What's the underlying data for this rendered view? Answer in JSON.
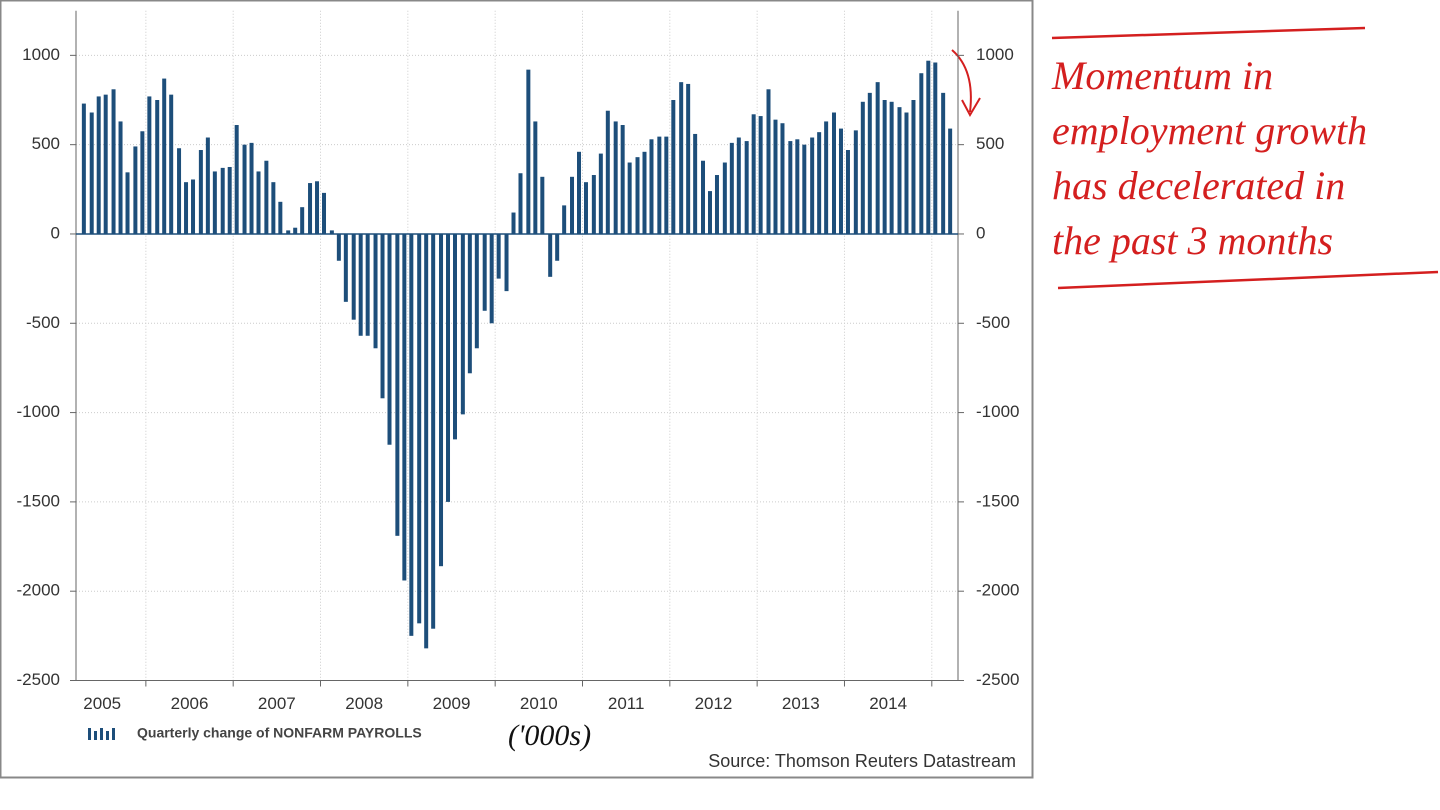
{
  "chart_data": {
    "type": "bar",
    "series": [
      {
        "name": "Quarterly change of NONFARM PAYROLLS",
        "color": "#1d4e7a",
        "x": [
          2005.29,
          2005.38,
          2005.46,
          2005.54,
          2005.63,
          2005.71,
          2005.79,
          2005.88,
          2005.96,
          2006.04,
          2006.13,
          2006.21,
          2006.29,
          2006.38,
          2006.46,
          2006.54,
          2006.63,
          2006.71,
          2006.79,
          2006.88,
          2006.96,
          2007.04,
          2007.13,
          2007.21,
          2007.29,
          2007.38,
          2007.46,
          2007.54,
          2007.63,
          2007.71,
          2007.79,
          2007.88,
          2007.96,
          2008.04,
          2008.13,
          2008.21,
          2008.29,
          2008.38,
          2008.46,
          2008.54,
          2008.63,
          2008.71,
          2008.79,
          2008.88,
          2008.96,
          2009.04,
          2009.13,
          2009.21,
          2009.29,
          2009.38,
          2009.46,
          2009.54,
          2009.63,
          2009.71,
          2009.79,
          2009.88,
          2009.96,
          2010.04,
          2010.13,
          2010.21,
          2010.29,
          2010.38,
          2010.46,
          2010.54,
          2010.63,
          2010.71,
          2010.79,
          2010.88,
          2010.96,
          2011.04,
          2011.13,
          2011.21,
          2011.29,
          2011.38,
          2011.46,
          2011.54,
          2011.63,
          2011.71,
          2011.79,
          2011.88,
          2011.96,
          2012.04,
          2012.13,
          2012.21,
          2012.29,
          2012.38,
          2012.46,
          2012.54,
          2012.63,
          2012.71,
          2012.79,
          2012.88,
          2012.96,
          2013.04,
          2013.13,
          2013.21,
          2013.29,
          2013.38,
          2013.46,
          2013.54,
          2013.63,
          2013.71,
          2013.79,
          2013.88,
          2013.96,
          2014.04,
          2014.13,
          2014.21,
          2014.29,
          2014.38,
          2014.46,
          2014.54,
          2014.63,
          2014.71,
          2014.79,
          2014.88,
          2014.96,
          2015.04,
          2015.13,
          2015.21
        ],
        "values": [
          730,
          680,
          770,
          780,
          810,
          630,
          345,
          490,
          575,
          770,
          750,
          870,
          780,
          480,
          290,
          305,
          470,
          540,
          350,
          370,
          375,
          610,
          500,
          510,
          350,
          410,
          290,
          180,
          20,
          35,
          150,
          285,
          295,
          230,
          20,
          -150,
          -380,
          -480,
          -570,
          -570,
          -640,
          -920,
          -1180,
          -1690,
          -1940,
          -2250,
          -2180,
          -2320,
          -2210,
          -1860,
          -1500,
          -1150,
          -1010,
          -780,
          -640,
          -430,
          -500,
          -250,
          -320,
          120,
          340,
          920,
          630,
          320,
          -240,
          -150,
          160,
          320,
          460,
          290,
          330,
          450,
          690,
          630,
          610,
          400,
          430,
          460,
          530,
          545,
          545,
          750,
          850,
          840,
          560,
          410,
          240,
          330,
          400,
          510,
          540,
          520,
          670,
          660,
          810,
          640,
          620,
          520,
          530,
          500,
          540,
          570,
          630,
          680,
          590,
          470,
          580,
          740,
          790,
          850,
          750,
          740,
          710,
          680,
          750,
          900,
          970,
          960,
          790,
          590
        ]
      }
    ],
    "xlim": [
      2005.2,
      2015.3
    ],
    "xticks": [
      {
        "value": 2005.5,
        "label": "2005"
      },
      {
        "value": 2006.5,
        "label": "2006"
      },
      {
        "value": 2007.5,
        "label": "2007"
      },
      {
        "value": 2008.5,
        "label": "2008"
      },
      {
        "value": 2009.5,
        "label": "2009"
      },
      {
        "value": 2010.5,
        "label": "2010"
      },
      {
        "value": 2011.5,
        "label": "2011"
      },
      {
        "value": 2012.5,
        "label": "2012"
      },
      {
        "value": 2013.5,
        "label": "2013"
      },
      {
        "value": 2014.5,
        "label": "2014"
      }
    ],
    "xgrid": [
      2006,
      2007,
      2008,
      2009,
      2010,
      2011,
      2012,
      2013,
      2014,
      2015
    ],
    "ylim": [
      -2500,
      1250
    ],
    "yticks": [
      -2500,
      -2000,
      -1500,
      -1000,
      -500,
      0,
      500,
      1000
    ],
    "grid": true,
    "source": "Source: Thomson Reuters Datastream",
    "units_note": "('000s)",
    "annotation": [
      "Momentum in",
      "employment growth",
      "has decelerated in",
      "the past 3  months"
    ]
  }
}
